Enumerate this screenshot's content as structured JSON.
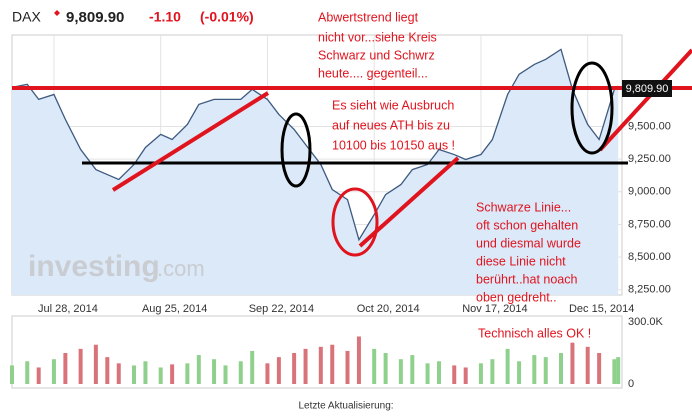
{
  "header": {
    "symbol": "DAX",
    "price": "9,809.90",
    "change": "-1.10",
    "change_pct": "(-0.01%)"
  },
  "watermark": [
    "investing",
    ".com"
  ],
  "annotations": [
    "Abwertstrend liegt",
    "nicht vor...siehe Kreis",
    "Schwarz und Schwrz",
    "heute.... gegenteil...",
    "Es sieht wie Ausbruch",
    "auf neues ATH bis zu",
    "10100 bis 10150 aus !",
    "Schwarze Linie...",
    "oft schon gehalten",
    "und diesmal wurde",
    "diese Linie nicht",
    "berührt..hat noach",
    "oben gedreht..",
    "Technisch alles OK !"
  ],
  "footer": "Letzte Aktualisierung:",
  "chart_data": [
    {
      "type": "area",
      "color": "#3d5a80",
      "fill": "#dce9f8",
      "grid": true,
      "x": [
        "2014-07-17",
        "2014-07-21",
        "2014-07-24",
        "2014-07-28",
        "2014-07-31",
        "2014-08-04",
        "2014-08-08",
        "2014-08-11",
        "2014-08-14",
        "2014-08-18",
        "2014-08-21",
        "2014-08-25",
        "2014-08-28",
        "2014-09-01",
        "2014-09-04",
        "2014-09-08",
        "2014-09-11",
        "2014-09-15",
        "2014-09-18",
        "2014-09-22",
        "2014-09-25",
        "2014-09-29",
        "2014-10-02",
        "2014-10-06",
        "2014-10-09",
        "2014-10-13",
        "2014-10-16",
        "2014-10-20",
        "2014-10-23",
        "2014-10-27",
        "2014-10-30",
        "2014-11-03",
        "2014-11-06",
        "2014-11-10",
        "2014-11-13",
        "2014-11-17",
        "2014-11-20",
        "2014-11-24",
        "2014-11-27",
        "2014-12-01",
        "2014-12-04",
        "2014-12-08",
        "2014-12-11",
        "2014-12-15",
        "2014-12-18",
        "2014-12-22",
        "2014-12-23"
      ],
      "values": [
        9799,
        9822,
        9707,
        9745,
        9554,
        9324,
        9170,
        9132,
        9094,
        9209,
        9339,
        9439,
        9400,
        9515,
        9669,
        9707,
        9707,
        9707,
        9784,
        9707,
        9592,
        9477,
        9362,
        9209,
        9017,
        8940,
        8633,
        8825,
        8979,
        9055,
        9170,
        9209,
        9324,
        9285,
        9247,
        9285,
        9400,
        9745,
        9899,
        9975,
        10014,
        10090,
        9784,
        9515,
        9400,
        9784,
        9809.9
      ],
      "xlim": [
        "2014-07-17",
        "2014-12-24"
      ],
      "ylim": [
        8210,
        10200
      ],
      "xticks": [
        {
          "value": "2014-07-28",
          "label": "Jul 28, 2014"
        },
        {
          "value": "2014-08-25",
          "label": "Aug 25, 2014"
        },
        {
          "value": "2014-09-22",
          "label": "Sep 22, 2014"
        },
        {
          "value": "2014-10-20",
          "label": "Oct 20, 2014"
        },
        {
          "value": "2014-11-17",
          "label": "Nov 17, 2014"
        },
        {
          "value": "2014-12-15",
          "label": "Dec 15, 2014"
        }
      ],
      "yticks": [
        {
          "value": 8250,
          "label": "8,250.00"
        },
        {
          "value": 8500,
          "label": "8,500.00"
        },
        {
          "value": 8750,
          "label": "8,750.00"
        },
        {
          "value": 9000,
          "label": "9,000.00"
        },
        {
          "value": 9250,
          "label": "9,250.00"
        },
        {
          "value": 9500,
          "label": "9,500.00"
        }
      ]
    },
    {
      "type": "bar",
      "up_color": "#8fd18c",
      "down_color": "#d9737a",
      "x": [
        "2014-07-17",
        "2014-07-21",
        "2014-07-24",
        "2014-07-28",
        "2014-07-31",
        "2014-08-04",
        "2014-08-08",
        "2014-08-11",
        "2014-08-14",
        "2014-08-18",
        "2014-08-21",
        "2014-08-25",
        "2014-08-28",
        "2014-09-01",
        "2014-09-04",
        "2014-09-08",
        "2014-09-11",
        "2014-09-15",
        "2014-09-18",
        "2014-09-22",
        "2014-09-25",
        "2014-09-29",
        "2014-10-02",
        "2014-10-06",
        "2014-10-09",
        "2014-10-13",
        "2014-10-16",
        "2014-10-20",
        "2014-10-23",
        "2014-10-27",
        "2014-10-30",
        "2014-11-03",
        "2014-11-06",
        "2014-11-10",
        "2014-11-13",
        "2014-11-17",
        "2014-11-20",
        "2014-11-24",
        "2014-11-27",
        "2014-12-01",
        "2014-12-04",
        "2014-12-08",
        "2014-12-11",
        "2014-12-15",
        "2014-12-18",
        "2014-12-22",
        "2014-12-23"
      ],
      "values": [
        90000,
        110000,
        80000,
        120000,
        150000,
        170000,
        190000,
        130000,
        100000,
        90000,
        110000,
        80000,
        95000,
        100000,
        140000,
        120000,
        90000,
        110000,
        160000,
        100000,
        130000,
        150000,
        170000,
        180000,
        190000,
        160000,
        230000,
        170000,
        150000,
        120000,
        140000,
        100000,
        110000,
        90000,
        80000,
        100000,
        120000,
        170000,
        110000,
        140000,
        130000,
        150000,
        200000,
        180000,
        150000,
        120000,
        130000
      ],
      "ylim": [
        0,
        300000
      ],
      "yticks": [
        0,
        {
          "value": 300000,
          "label": "300.0K"
        }
      ]
    }
  ]
}
